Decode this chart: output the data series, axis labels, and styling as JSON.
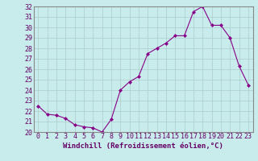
{
  "hours": [
    0,
    1,
    2,
    3,
    4,
    5,
    6,
    7,
    8,
    9,
    10,
    11,
    12,
    13,
    14,
    15,
    16,
    17,
    18,
    19,
    20,
    21,
    22,
    23
  ],
  "values": [
    22.5,
    21.7,
    21.6,
    21.3,
    20.7,
    20.5,
    20.4,
    20.0,
    21.2,
    24.0,
    24.8,
    25.3,
    27.5,
    28.0,
    28.5,
    29.2,
    29.2,
    31.5,
    32.0,
    30.2,
    30.2,
    29.0,
    26.3,
    24.5
  ],
  "line_color": "#880088",
  "marker": "D",
  "marker_size": 2.0,
  "bg_color": "#c8ecec",
  "grid_color": "#aacccc",
  "ylim": [
    20,
    32
  ],
  "yticks": [
    20,
    21,
    22,
    23,
    24,
    25,
    26,
    27,
    28,
    29,
    30,
    31,
    32
  ],
  "xlabel": "Windchill (Refroidissement éolien,°C)",
  "xlabel_fontsize": 6.5,
  "tick_fontsize": 6.0,
  "spine_color": "#888888"
}
